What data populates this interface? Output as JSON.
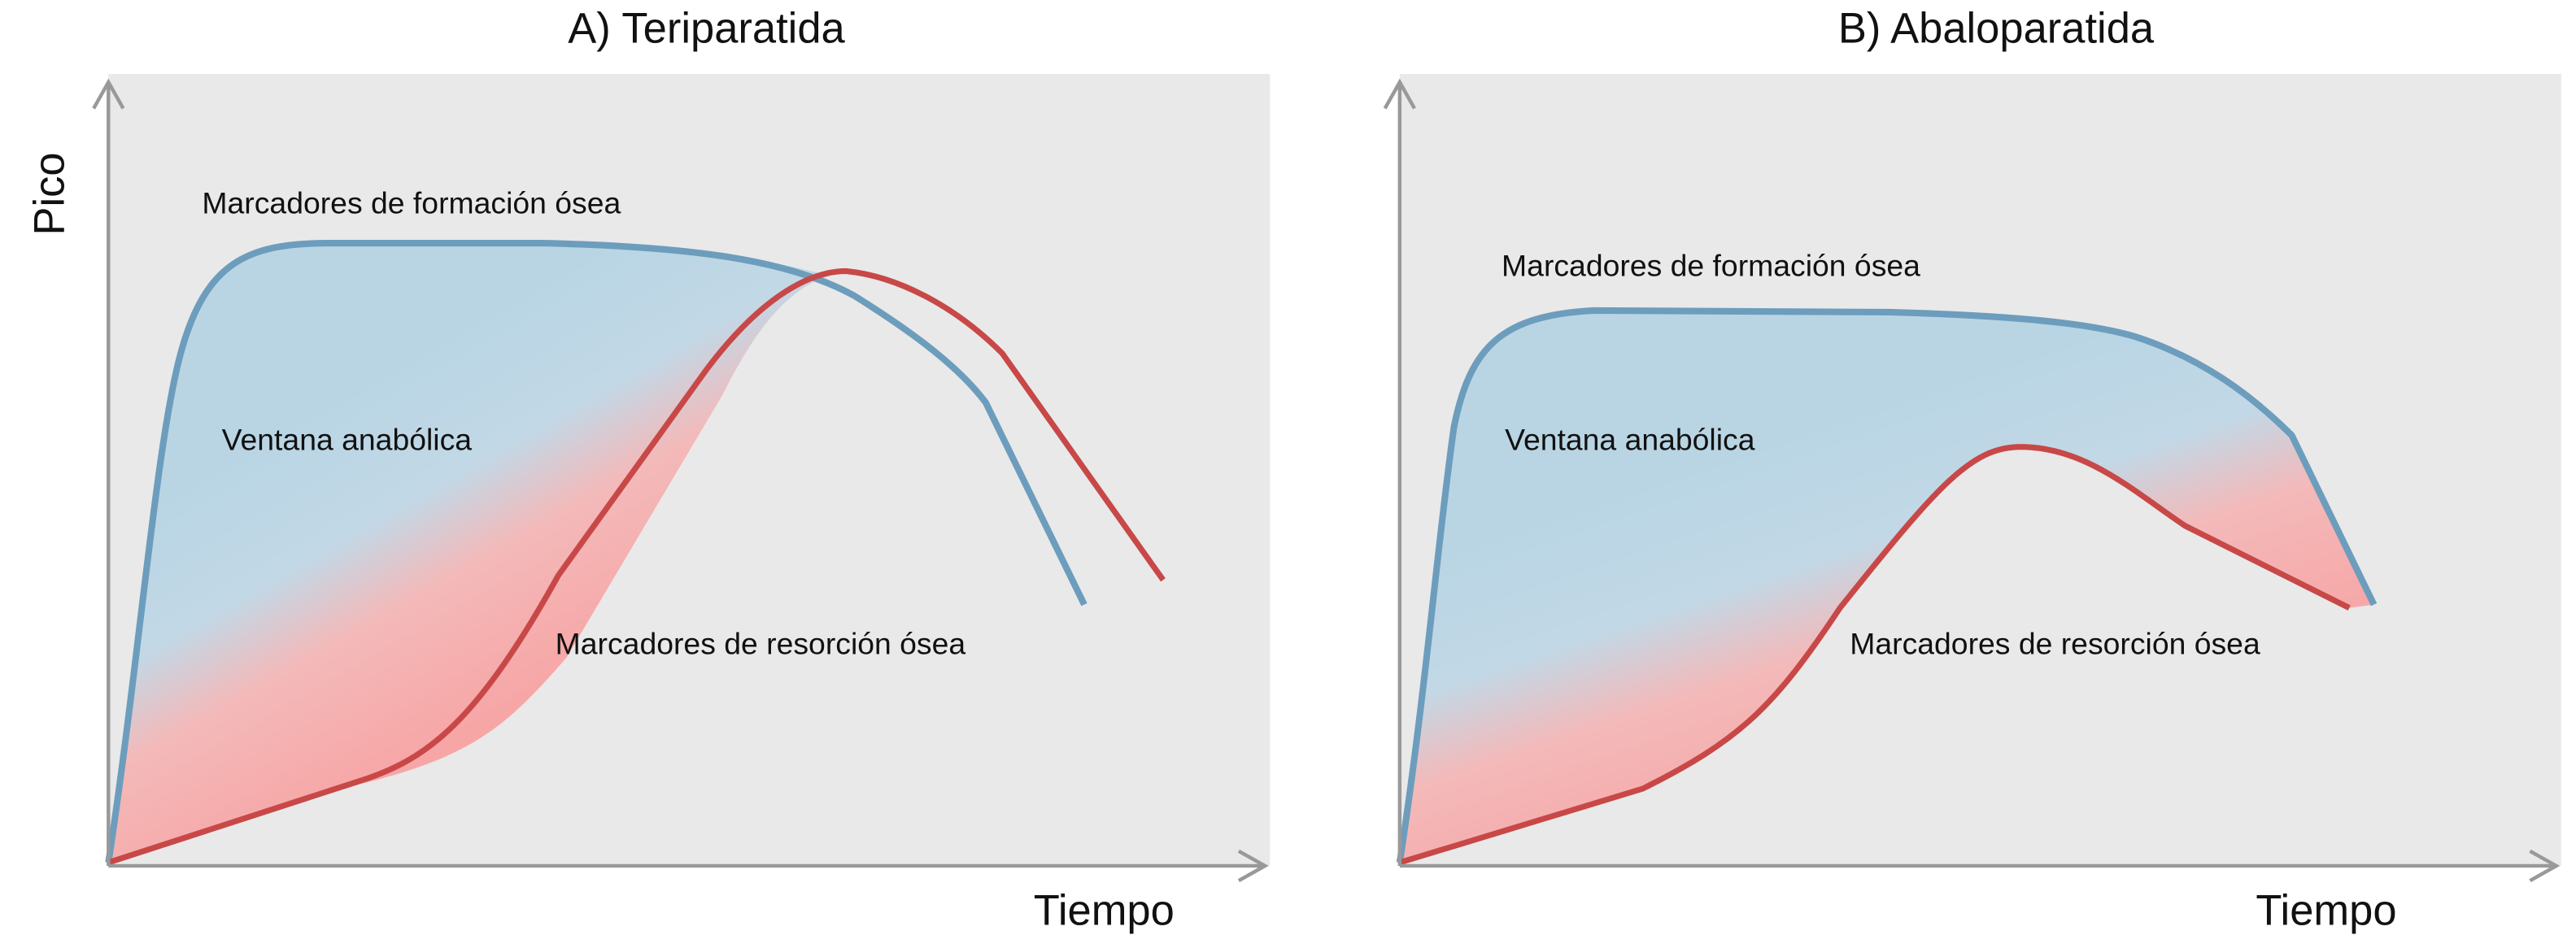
{
  "y_label": "Pico",
  "panels": [
    {
      "title": "A) Teriparatida",
      "x_label": "Tiempo",
      "annotations": [
        "Marcadores de formación ósea",
        "Ventana anabólica",
        "Marcadores de resorción ósea"
      ]
    },
    {
      "title": "B) Abaloparatida",
      "x_label": "Tiempo",
      "annotations": [
        "Marcadores de formación ósea",
        "Ventana anabólica",
        "Marcadores de resorción ósea"
      ]
    }
  ]
}
